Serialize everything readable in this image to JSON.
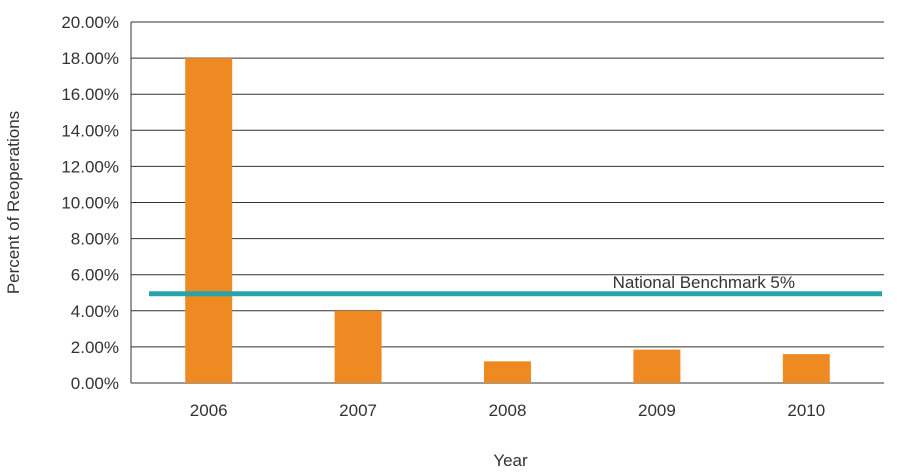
{
  "chart_data": {
    "type": "bar",
    "title": "",
    "xlabel": "Year",
    "ylabel": "Percent of Reoperations",
    "categories": [
      "2006",
      "2007",
      "2008",
      "2009",
      "2010"
    ],
    "values": [
      18.0,
      4.0,
      1.2,
      1.85,
      1.6
    ],
    "ylim": [
      0,
      20
    ],
    "yticks": [
      0,
      2,
      4,
      6,
      8,
      10,
      12,
      14,
      16,
      18,
      20
    ],
    "ytick_labels": [
      "0.00%",
      "2.00%",
      "4.00%",
      "6.00%",
      "8.00%",
      "10.00%",
      "12.00%",
      "14.00%",
      "16.00%",
      "18.00%",
      "20.00%"
    ],
    "grid": true,
    "legend": "none",
    "reference_line": {
      "label": "National Benchmark 5%",
      "value": 5,
      "color": "#2aa3a8"
    },
    "bar_color": "#ef8a22",
    "grid_color": "#333333"
  }
}
